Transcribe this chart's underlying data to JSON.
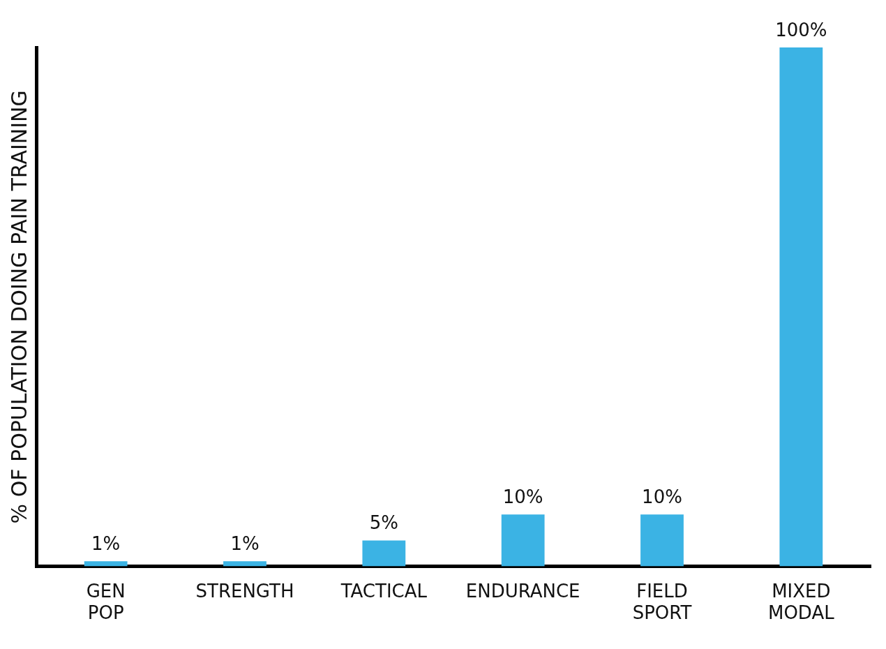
{
  "chart_data": {
    "type": "bar",
    "ylabel": "% OF POPULATION DOING PAIN TRAINING",
    "categories": [
      "GEN POP",
      "STRENGTH",
      "TACTICAL",
      "ENDURANCE",
      "FIELD SPORT",
      "MIXED MODAL"
    ],
    "values": [
      1,
      1,
      5,
      10,
      10,
      100
    ],
    "value_labels": [
      "1%",
      "1%",
      "5%",
      "10%",
      "10%",
      "100%"
    ],
    "color": "#3bb3e4",
    "grid": false,
    "legend": false
  }
}
